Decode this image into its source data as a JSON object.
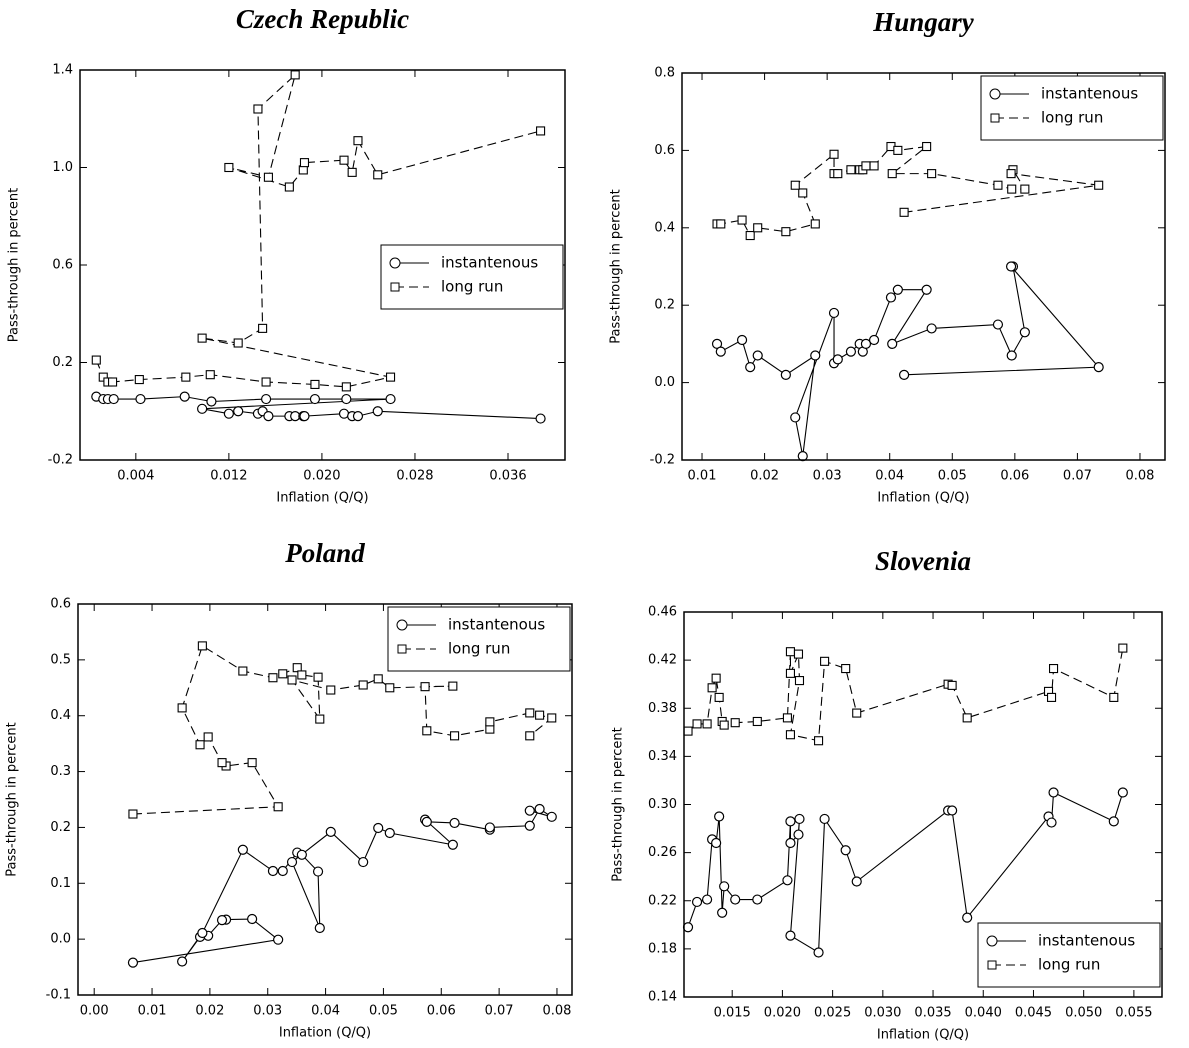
{
  "chart_data": [
    {
      "type": "line",
      "title": "Czech Republic",
      "xlabel": "Inflation (Q/Q)",
      "ylabel": "Pass-through in percent",
      "xlim": [
        -0.0008,
        0.0409
      ],
      "ylim": [
        -0.2,
        1.4
      ],
      "xticks": [
        0.004,
        0.012,
        {
          "value": 0.02,
          "label": "0.020"
        },
        0.028,
        0.036
      ],
      "yticks": [
        -0.2,
        0.2,
        0.6,
        {
          "value": 1,
          "label": "1.0"
        },
        1.4
      ],
      "legend": "center right",
      "series": [
        {
          "name": "instantenous",
          "color": "#000000",
          "linestyle": "solid",
          "marker": "circle",
          "x": [
            0.0006,
            0.0012,
            0.0016,
            0.0021,
            0.0044,
            0.0082,
            0.0105,
            0.0152,
            0.0194,
            0.0221,
            0.0259,
            0.0097,
            0.012,
            0.0128,
            0.0145,
            0.0149,
            0.0154,
            0.0172,
            0.0177,
            0.0184,
            0.0185,
            0.0219,
            0.0226,
            0.0231,
            0.0248,
            0.0388
          ],
          "values": [
            0.06,
            0.05,
            0.05,
            0.05,
            0.05,
            0.06,
            0.04,
            0.05,
            0.05,
            0.05,
            0.05,
            0.01,
            -0.01,
            0.0,
            -0.01,
            0.0,
            -0.02,
            -0.02,
            -0.02,
            -0.02,
            -0.02,
            -0.01,
            -0.02,
            -0.02,
            0.0,
            -0.03
          ]
        },
        {
          "name": "long run",
          "color": "#000000",
          "linestyle": "dashed",
          "marker": "square",
          "x": [
            0.0006,
            0.0012,
            0.0016,
            0.002,
            0.0043,
            0.0083,
            0.0104,
            0.0152,
            0.0194,
            0.0221,
            0.0259,
            0.0097,
            0.0128,
            0.0149,
            0.0145,
            0.0177,
            0.0154,
            0.012,
            0.0172,
            0.0184,
            0.0185,
            0.0219,
            0.0226,
            0.0231,
            0.0248,
            0.0388
          ],
          "values": [
            0.21,
            0.14,
            0.12,
            0.12,
            0.13,
            0.14,
            0.15,
            0.12,
            0.11,
            0.1,
            0.14,
            0.3,
            0.28,
            0.34,
            1.24,
            1.38,
            0.96,
            1.0,
            0.92,
            0.99,
            1.02,
            1.03,
            0.98,
            1.11,
            0.97,
            1.15
          ]
        }
      ]
    },
    {
      "type": "line",
      "title": "Hungary",
      "xlabel": "Inflation (Q/Q)",
      "ylabel": "Pass-through in percent",
      "xlim": [
        0.0068,
        0.084
      ],
      "ylim": [
        -0.2,
        0.8
      ],
      "xticks": [
        0.01,
        0.02,
        0.03,
        0.04,
        0.05,
        0.06,
        0.07,
        0.08
      ],
      "yticks": [
        -0.2,
        {
          "value": 0,
          "label": "0.0"
        },
        0.2,
        0.4,
        0.6,
        0.8
      ],
      "legend": "upper right",
      "series": [
        {
          "name": "instantenous",
          "color": "#000000",
          "linestyle": "solid",
          "marker": "circle",
          "x": [
            0.0124,
            0.013,
            0.0164,
            0.0177,
            0.0189,
            0.0234,
            0.0281,
            0.0261,
            0.0249,
            0.0311,
            0.0311,
            0.0317,
            0.0338,
            0.0352,
            0.0357,
            0.0362,
            0.0375,
            0.0402,
            0.0413,
            0.0459,
            0.0404,
            0.0467,
            0.0573,
            0.0595,
            0.0616,
            0.0597,
            0.0594,
            0.0734,
            0.0423
          ],
          "values": [
            0.1,
            0.08,
            0.11,
            0.04,
            0.07,
            0.02,
            0.07,
            -0.19,
            -0.09,
            0.18,
            0.05,
            0.06,
            0.08,
            0.1,
            0.08,
            0.1,
            0.11,
            0.22,
            0.24,
            0.24,
            0.1,
            0.14,
            0.15,
            0.07,
            0.13,
            0.3,
            0.3,
            0.04,
            0.02
          ]
        },
        {
          "name": "long run",
          "color": "#000000",
          "linestyle": "dashed",
          "marker": "square",
          "x": [
            0.0124,
            0.013,
            0.0164,
            0.0177,
            0.0189,
            0.0234,
            0.0281,
            0.0261,
            0.0249,
            0.0311,
            0.0311,
            0.0317,
            0.0338,
            0.0352,
            0.0357,
            0.0362,
            0.0375,
            0.0402,
            0.0413,
            0.0459,
            0.0404,
            0.0467,
            0.0573,
            0.0595,
            0.0616,
            0.0597,
            0.0594,
            0.0734,
            0.0423
          ],
          "values": [
            0.41,
            0.41,
            0.42,
            0.38,
            0.4,
            0.39,
            0.41,
            0.49,
            0.51,
            0.59,
            0.54,
            0.54,
            0.55,
            0.55,
            0.55,
            0.56,
            0.56,
            0.61,
            0.6,
            0.61,
            0.54,
            0.54,
            0.51,
            0.5,
            0.5,
            0.55,
            0.54,
            0.51,
            0.44
          ]
        }
      ]
    },
    {
      "type": "line",
      "title": "Poland",
      "xlabel": "Inflation (Q/Q)",
      "ylabel": "Pass-through in percent",
      "xlim": [
        -0.0028,
        0.0826
      ],
      "ylim": [
        -0.1,
        0.6
      ],
      "xticks": [
        {
          "value": 0,
          "label": "0.00"
        },
        0.01,
        0.02,
        0.03,
        0.04,
        0.05,
        0.06,
        0.07,
        0.08
      ],
      "yticks": [
        -0.1,
        {
          "value": 0,
          "label": "0.0"
        },
        0.1,
        0.2,
        0.3,
        0.4,
        0.5,
        0.6
      ],
      "legend": "upper right",
      "series": [
        {
          "name": "instantenous",
          "color": "#000000",
          "linestyle": "solid",
          "marker": "circle",
          "x": [
            0.0067,
            0.0318,
            0.0273,
            0.0228,
            0.0221,
            0.0197,
            0.0183,
            0.0152,
            0.0187,
            0.0257,
            0.0309,
            0.0326,
            0.0351,
            0.0359,
            0.0387,
            0.039,
            0.0342,
            0.0409,
            0.0465,
            0.0491,
            0.0511,
            0.062,
            0.0572,
            0.0575,
            0.0623,
            0.0684,
            0.0684,
            0.0753,
            0.077,
            0.0791,
            0.0753
          ],
          "values": [
            -0.042,
            -0.001,
            0.036,
            0.035,
            0.034,
            0.006,
            0.004,
            -0.04,
            0.011,
            0.16,
            0.122,
            0.122,
            0.155,
            0.151,
            0.121,
            0.02,
            0.138,
            0.192,
            0.138,
            0.199,
            0.19,
            0.169,
            0.214,
            0.21,
            0.208,
            0.196,
            0.2,
            0.203,
            0.233,
            0.219,
            0.23
          ]
        },
        {
          "name": "long run",
          "color": "#000000",
          "linestyle": "dashed",
          "marker": "square",
          "x": [
            0.0067,
            0.0318,
            0.0273,
            0.0228,
            0.0221,
            0.0197,
            0.0183,
            0.0152,
            0.0187,
            0.0257,
            0.0309,
            0.0326,
            0.0351,
            0.0359,
            0.0387,
            0.039,
            0.0342,
            0.0409,
            0.0465,
            0.0491,
            0.0511,
            0.062,
            0.0572,
            0.0575,
            0.0623,
            0.0684,
            0.0684,
            0.0753,
            0.077,
            0.0791,
            0.0753
          ],
          "values": [
            0.224,
            0.237,
            0.316,
            0.31,
            0.316,
            0.362,
            0.348,
            0.414,
            0.525,
            0.48,
            0.468,
            0.475,
            0.486,
            0.473,
            0.469,
            0.394,
            0.464,
            0.446,
            0.455,
            0.466,
            0.45,
            0.453,
            0.452,
            0.373,
            0.364,
            0.376,
            0.389,
            0.405,
            0.401,
            0.396,
            0.364
          ]
        }
      ]
    },
    {
      "type": "line",
      "title": "Slovenia",
      "xlabel": "Inflation (Q/Q)",
      "ylabel": "Pass-through in percent",
      "xlim": [
        0.0102,
        0.0578
      ],
      "ylim": [
        0.14,
        0.46
      ],
      "xticks": [
        0.015,
        {
          "value": 0.02,
          "label": "0.020"
        },
        0.025,
        {
          "value": 0.03,
          "label": "0.030"
        },
        0.035,
        {
          "value": 0.04,
          "label": "0.040"
        },
        0.045,
        {
          "value": 0.05,
          "label": "0.050"
        },
        0.055
      ],
      "yticks": [
        0.14,
        0.18,
        0.22,
        0.26,
        {
          "value": 0.3,
          "label": "0.30"
        },
        0.34,
        0.38,
        0.42,
        0.46
      ],
      "legend": "lower right",
      "series": [
        {
          "name": "instantenous",
          "color": "#000000",
          "linestyle": "solid",
          "marker": "circle",
          "x": [
            0.0106,
            0.0115,
            0.0125,
            0.013,
            0.0134,
            0.0137,
            0.014,
            0.0142,
            0.0153,
            0.0175,
            0.0205,
            0.0208,
            0.0208,
            0.0216,
            0.0217,
            0.0208,
            0.0236,
            0.0242,
            0.0263,
            0.0274,
            0.0365,
            0.0369,
            0.0384,
            0.0465,
            0.0468,
            0.047,
            0.053,
            0.0539
          ],
          "values": [
            0.198,
            0.219,
            0.221,
            0.271,
            0.268,
            0.29,
            0.21,
            0.232,
            0.221,
            0.221,
            0.237,
            0.286,
            0.268,
            0.275,
            0.288,
            0.191,
            0.177,
            0.288,
            0.262,
            0.236,
            0.295,
            0.295,
            0.206,
            0.29,
            0.285,
            0.31,
            0.286,
            0.31
          ]
        },
        {
          "name": "long run",
          "color": "#000000",
          "linestyle": "dashed",
          "marker": "square",
          "x": [
            0.0106,
            0.0115,
            0.0125,
            0.013,
            0.0134,
            0.0137,
            0.014,
            0.0142,
            0.0153,
            0.0175,
            0.0205,
            0.0208,
            0.0208,
            0.0216,
            0.0217,
            0.0208,
            0.0236,
            0.0242,
            0.0263,
            0.0274,
            0.0365,
            0.0369,
            0.0384,
            0.0465,
            0.0468,
            0.047,
            0.053,
            0.0539
          ],
          "values": [
            0.361,
            0.367,
            0.367,
            0.397,
            0.405,
            0.389,
            0.369,
            0.366,
            0.368,
            0.369,
            0.372,
            0.427,
            0.409,
            0.425,
            0.403,
            0.358,
            0.353,
            0.419,
            0.413,
            0.376,
            0.4,
            0.399,
            0.372,
            0.394,
            0.389,
            0.413,
            0.389,
            0.43
          ]
        }
      ]
    }
  ]
}
